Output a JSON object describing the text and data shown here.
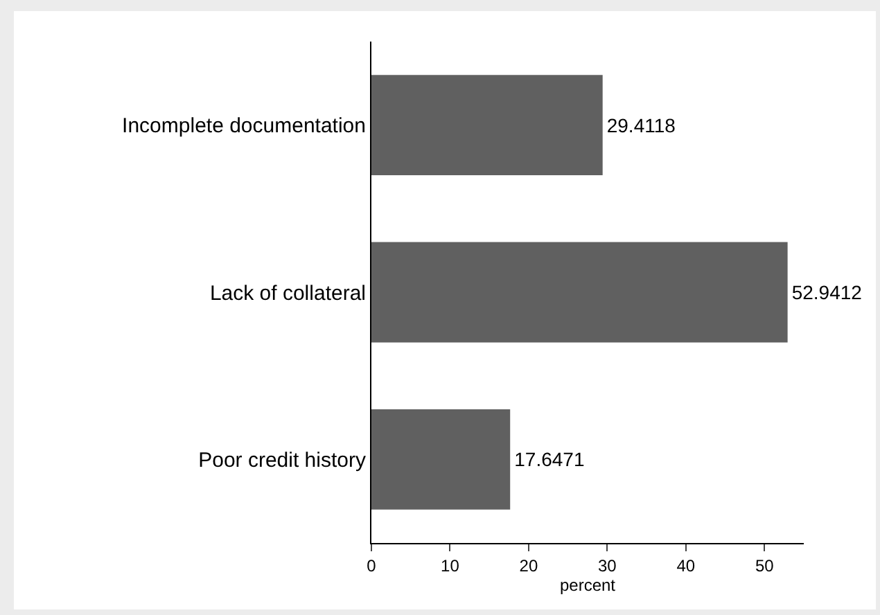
{
  "chart_data": {
    "type": "bar",
    "orientation": "horizontal",
    "categories": [
      "Incomplete documentation",
      "Lack of collateral",
      "Poor credit history"
    ],
    "values": [
      29.4118,
      52.9412,
      17.6471
    ],
    "color": "#606060",
    "data_labels": true,
    "xlabel": "percent",
    "xlim": [
      0,
      55
    ],
    "xticks": [
      0,
      10,
      20,
      30,
      40,
      50
    ],
    "grid": false
  }
}
